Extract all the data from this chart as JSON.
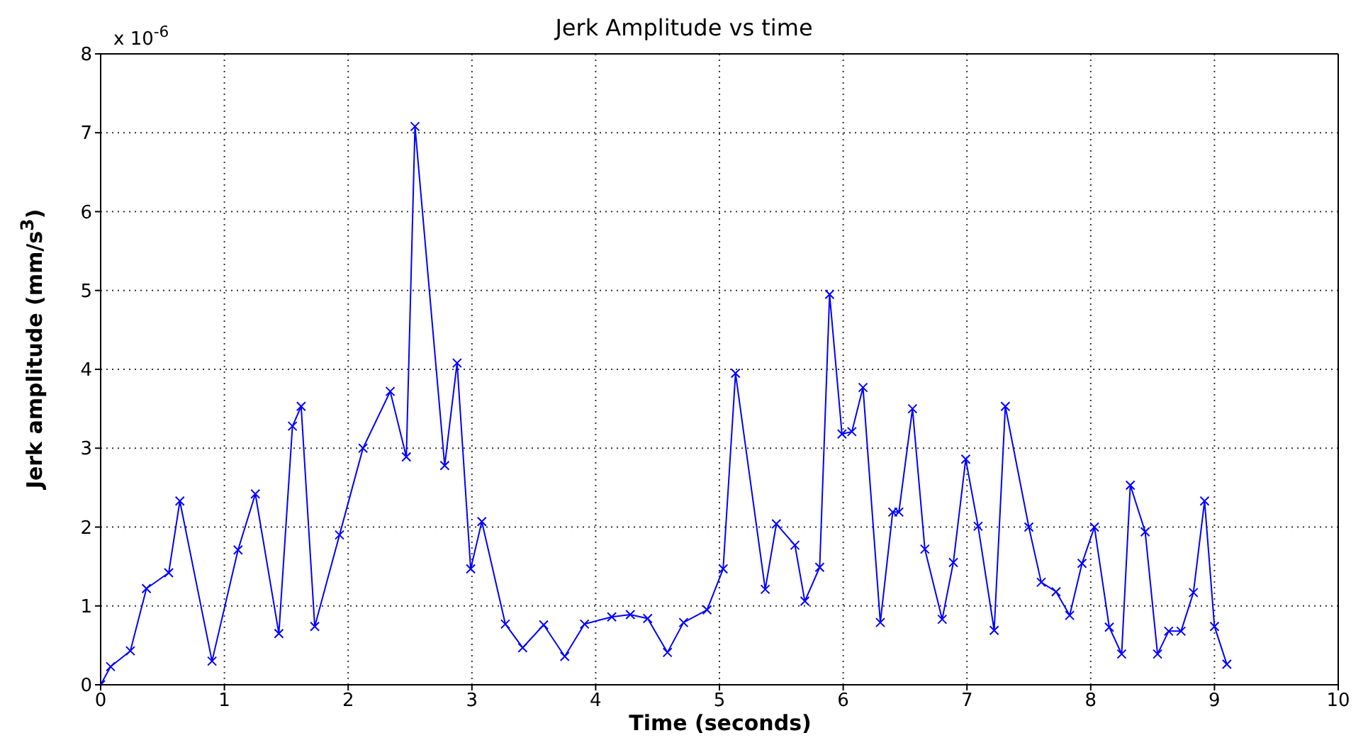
{
  "chart_data": {
    "type": "line",
    "title": "Jerk Amplitude vs time",
    "xlabel": "Time (seconds)",
    "ylabel": "Jerk amplitude (mm/s$^{3}$)",
    "annotations": [
      "x 10$^{-6}$"
    ],
    "x": [
      0,
      0.08,
      0.24,
      0.37,
      0.55,
      0.64,
      0.9,
      1.11,
      1.25,
      1.44,
      1.55,
      1.62,
      1.73,
      1.93,
      2.12,
      2.34,
      2.47,
      2.54,
      2.78,
      2.88,
      2.99,
      3.08,
      3.27,
      3.41,
      3.58,
      3.75,
      3.91,
      4.13,
      4.28,
      4.42,
      4.58,
      4.71,
      4.9,
      5.03,
      5.13,
      5.37,
      5.46,
      5.61,
      5.69,
      5.81,
      5.89,
      5.99,
      6.07,
      6.16,
      6.3,
      6.4,
      6.45,
      6.56,
      6.66,
      6.8,
      6.89,
      6.99,
      7.09,
      7.22,
      7.31,
      7.5,
      7.6,
      7.72,
      7.83,
      7.93,
      8.03,
      8.15,
      8.25,
      8.32,
      8.44,
      8.54,
      8.63,
      8.73,
      8.83,
      8.92,
      9.0,
      9.1
    ],
    "series": [
      {
        "color": "#0000ff",
        "values": [
          0,
          0.23,
          0.43,
          1.22,
          1.42,
          2.33,
          0.3,
          1.71,
          2.42,
          0.65,
          3.28,
          3.53,
          0.74,
          1.9,
          3.0,
          3.72,
          2.89,
          7.08,
          2.78,
          4.08,
          1.47,
          2.07,
          0.77,
          0.47,
          0.76,
          0.36,
          0.77,
          0.86,
          0.89,
          0.84,
          0.41,
          0.79,
          0.95,
          1.47,
          3.95,
          1.21,
          2.04,
          1.77,
          1.06,
          1.49,
          4.95,
          3.18,
          3.21,
          3.77,
          0.79,
          2.19,
          2.19,
          3.5,
          1.72,
          0.83,
          1.55,
          2.86,
          2.01,
          0.69,
          3.53,
          2.0,
          1.3,
          1.18,
          0.88,
          1.54,
          2.0,
          0.73,
          0.39,
          2.53,
          1.94,
          0.39,
          0.68,
          0.68,
          1.17,
          2.33,
          0.74,
          0.26
        ]
      }
    ],
    "xlim": [
      0,
      10
    ],
    "xticks": [
      0,
      1,
      2,
      3,
      4,
      5,
      6,
      7,
      8,
      9,
      10
    ],
    "ylim": [
      0,
      8
    ],
    "yticks": [
      0,
      1,
      2,
      3,
      4,
      5,
      6,
      7,
      8
    ],
    "grid": true,
    "marker": "cross",
    "line_style": "solid"
  }
}
